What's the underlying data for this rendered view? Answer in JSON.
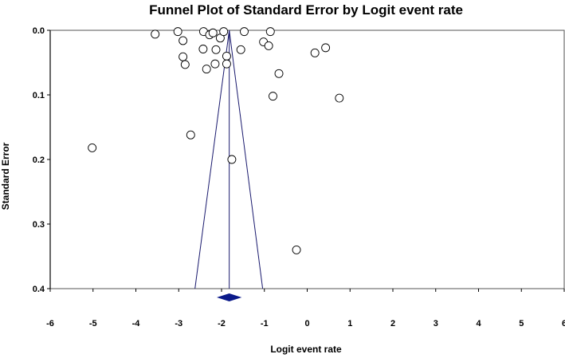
{
  "chart_data": {
    "type": "scatter",
    "title": "Funnel Plot of Standard Error by Logit event rate",
    "xlabel": "Logit event rate",
    "ylabel": "Standard Error",
    "xlim": [
      -6,
      6
    ],
    "ylim": [
      0.4,
      0.0
    ],
    "y_axis_inverted": true,
    "x_ticks": [
      "-6",
      "-5",
      "-4",
      "-3",
      "-2",
      "-1",
      "0",
      "1",
      "2",
      "3",
      "4",
      "5",
      "6"
    ],
    "y_ticks": [
      "0.0",
      "0.1",
      "0.2",
      "0.3",
      "0.4"
    ],
    "grid": false,
    "legend": "none",
    "points": [
      {
        "x": -5.02,
        "y": 0.182
      },
      {
        "x": -3.55,
        "y": 0.006
      },
      {
        "x": -3.02,
        "y": 0.002
      },
      {
        "x": -2.9,
        "y": 0.016
      },
      {
        "x": -2.9,
        "y": 0.041
      },
      {
        "x": -2.85,
        "y": 0.053
      },
      {
        "x": -2.72,
        "y": 0.162
      },
      {
        "x": -2.42,
        "y": 0.002
      },
      {
        "x": -2.43,
        "y": 0.029
      },
      {
        "x": -2.35,
        "y": 0.06
      },
      {
        "x": -2.28,
        "y": 0.007
      },
      {
        "x": -2.2,
        "y": 0.004
      },
      {
        "x": -2.15,
        "y": 0.052
      },
      {
        "x": -2.13,
        "y": 0.03
      },
      {
        "x": -2.03,
        "y": 0.012
      },
      {
        "x": -1.95,
        "y": 0.002
      },
      {
        "x": -1.88,
        "y": 0.04
      },
      {
        "x": -1.88,
        "y": 0.052
      },
      {
        "x": -1.76,
        "y": 0.2
      },
      {
        "x": -1.55,
        "y": 0.03
      },
      {
        "x": -1.47,
        "y": 0.002
      },
      {
        "x": -1.02,
        "y": 0.018
      },
      {
        "x": -0.9,
        "y": 0.024
      },
      {
        "x": -0.86,
        "y": 0.002
      },
      {
        "x": -0.8,
        "y": 0.102
      },
      {
        "x": -0.66,
        "y": 0.067
      },
      {
        "x": -0.25,
        "y": 0.34
      },
      {
        "x": 0.18,
        "y": 0.035
      },
      {
        "x": 0.43,
        "y": 0.027
      },
      {
        "x": 0.75,
        "y": 0.105
      }
    ],
    "summary_estimate": -1.82,
    "funnel_lines": {
      "left_bottom_x": -2.62,
      "right_bottom_x": -1.04
    },
    "colors": {
      "points": "#000000",
      "funnel": "#1a1a6e",
      "diamond": "#0b1a8a",
      "axis": "#000000"
    }
  }
}
